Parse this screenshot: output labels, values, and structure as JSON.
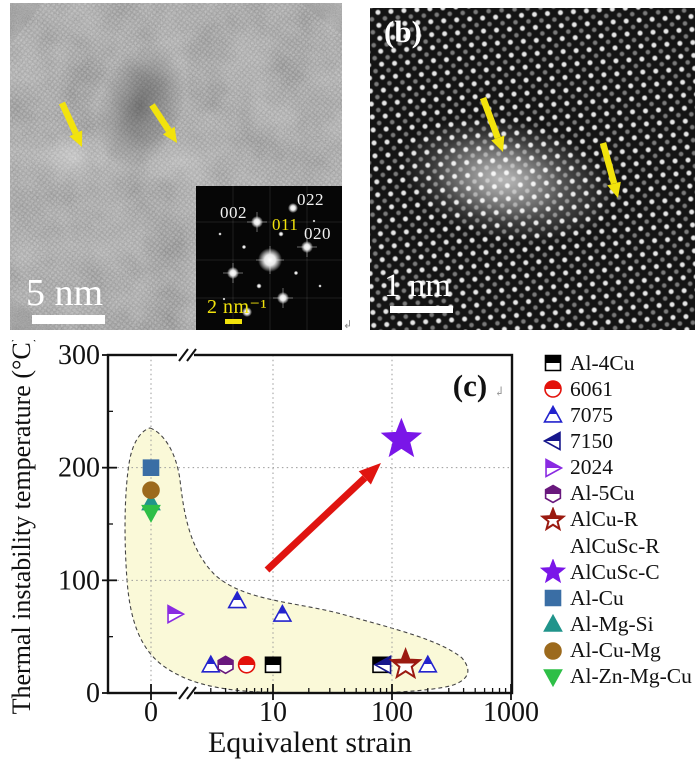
{
  "figure": {
    "panel_a": {
      "scale_bar_label": "5 nm",
      "fft_inset": {
        "spot_labels": {
          "l_002": "002",
          "l_022": "022",
          "l_011": "011",
          "l_020": "020"
        },
        "scale_bar_label": "2 nm⁻¹"
      }
    },
    "panel_b": {
      "label": "(b)",
      "scale_bar_label": "1 nm"
    },
    "panel_c_label": "(c)"
  },
  "colors": {
    "annotation_yellow": "#f2e30c",
    "trend_arrow_red": "#e01410",
    "highlight_fill": "#faf8d4",
    "highlight_stroke": "#444444",
    "grid_gray": "#9a9a9a",
    "axis_black": "#111111"
  },
  "chart_data": {
    "type": "scatter",
    "title": "",
    "xlabel": "Equivalent strain",
    "ylabel": "Thermal instability temperature (°C)",
    "x_scale": "log with axis break; 0 plotted left of break",
    "x_ticks": [
      "0",
      "10",
      "100",
      "1000"
    ],
    "y_ticks": [
      "0",
      "100",
      "200",
      "300"
    ],
    "ylim": [
      0,
      300
    ],
    "grid": "dotted vertical at x=0,10,100; dotted horizontal at y=100,200",
    "legend_position": "right",
    "series": [
      {
        "name": "Al-4Cu",
        "marker": "square",
        "fill": "half",
        "color": "#000000",
        "size": 7.5,
        "points": [
          [
            10,
            25
          ],
          [
            80,
            25
          ]
        ]
      },
      {
        "name": "6061",
        "marker": "circle",
        "fill": "half",
        "color": "#e3120b",
        "size": 8,
        "points": [
          [
            6,
            25
          ]
        ]
      },
      {
        "name": "7075",
        "marker": "triangle-up",
        "fill": "half",
        "color": "#2323cd",
        "size": 8.5,
        "points": [
          [
            3,
            25
          ],
          [
            5,
            82
          ],
          [
            12,
            70
          ],
          [
            200,
            25
          ]
        ]
      },
      {
        "name": "7150",
        "marker": "triangle-left",
        "fill": "half",
        "color": "#16168c",
        "size": 8.5,
        "points": [
          [
            85,
            25
          ]
        ]
      },
      {
        "name": "2024",
        "marker": "triangle-right",
        "fill": "half",
        "color": "#8a2be2",
        "size": 8.5,
        "points": [
          [
            1.5,
            70
          ]
        ]
      },
      {
        "name": "Al-5Cu",
        "marker": "hexagon",
        "fill": "half",
        "color": "#69187d",
        "size": 8.5,
        "points": [
          [
            4,
            25
          ]
        ]
      },
      {
        "name": "AlCu-R",
        "marker": "star",
        "fill": "half",
        "color": "#9b1a10",
        "size": 15,
        "points": [
          [
            130,
            25
          ]
        ]
      },
      {
        "name": "AlCuSc-R",
        "marker": "none",
        "fill": "none",
        "color": "#000000",
        "size": 0,
        "points": []
      },
      {
        "name": "AlCuSc-C",
        "marker": "star",
        "fill": "full",
        "color": "#7a16e8",
        "size": 19,
        "points": [
          [
            120,
            225
          ]
        ]
      },
      {
        "name": "Al-Cu",
        "marker": "square",
        "fill": "full",
        "color": "#3a6ea5",
        "size": 7.5,
        "points": [
          [
            0,
            200
          ]
        ]
      },
      {
        "name": "Al-Mg-Si",
        "marker": "triangle-up",
        "fill": "full",
        "color": "#20948b",
        "size": 8.5,
        "points": [
          [
            0,
            169
          ]
        ]
      },
      {
        "name": "Al-Cu-Mg",
        "marker": "circle",
        "fill": "full",
        "color": "#9c6a1d",
        "size": 8,
        "points": [
          [
            0,
            180
          ]
        ]
      },
      {
        "name": "Al-Zn-Mg-Cu",
        "marker": "triangle-down",
        "fill": "full",
        "color": "#2ebf47",
        "size": 8.5,
        "points": [
          [
            0,
            160
          ]
        ]
      }
    ],
    "annotations": {
      "trend_arrow": "red arrow pointing up-right toward AlCuSc-C",
      "highlight_region": "pale-yellow dashed region enclosing conventional alloys"
    }
  }
}
